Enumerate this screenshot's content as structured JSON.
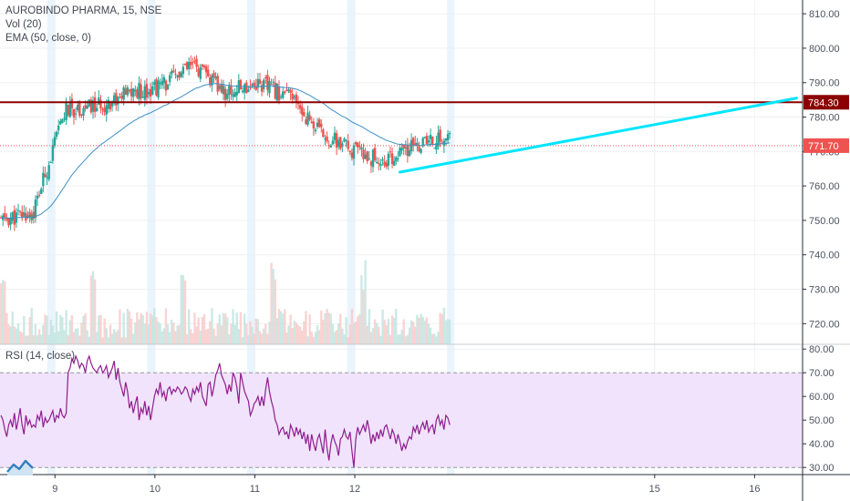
{
  "legend": {
    "symbol": "AUROBINDO PHARMA, 15, NSE",
    "volume": "Vol (20)",
    "ema": "EMA (50, close, 0)",
    "rsi": "RSI (14, close)"
  },
  "colors": {
    "up": "#26a69a",
    "down": "#ef5350",
    "ema": "#3d8fc6",
    "rsi": "#8e1d8e",
    "resistance": "#8b0000",
    "trendline": "#00e5ff",
    "last_price": "#ef5350",
    "rsi_band": "#f1e3fb"
  },
  "chart_data": [
    {
      "type": "candlestick",
      "title": "AUROBINDO PHARMA, 15, NSE",
      "ylim": [
        714,
        814
      ],
      "y_ticks": [
        "720.00",
        "730.00",
        "740.00",
        "750.00",
        "760.00",
        "770.00",
        "780.00",
        "790.00",
        "800.00",
        "810.00"
      ],
      "x_ticks": [
        "9",
        "10",
        "11",
        "12",
        "15",
        "16"
      ],
      "x_range": [
        8.45,
        16.48
      ],
      "session_marks": [
        8.96,
        9.96,
        10.96,
        11.96,
        12.96
      ],
      "resistance_level": 784.3,
      "resistance_label": "784.30",
      "last_price": 771.7,
      "last_price_label": "771.70",
      "trendline": {
        "x": [
          12.45,
          16.42
        ],
        "y": [
          764,
          785.5
        ]
      },
      "session_means": [
        750,
        752,
        782,
        783,
        787,
        789,
        795,
        787,
        790,
        786,
        775,
        770,
        767,
        772,
        774
      ],
      "volume_max": 40,
      "ema_period": 50
    },
    {
      "type": "line",
      "title": "RSI (14, close)",
      "ylim": [
        27,
        82
      ],
      "y_ticks": [
        "30.00",
        "40.00",
        "50.00",
        "60.00",
        "70.00",
        "80.00"
      ],
      "bands": [
        30,
        70
      ],
      "values": [
        52,
        50,
        46,
        43,
        48,
        50,
        47,
        53,
        46,
        50,
        55,
        48,
        44,
        52,
        48,
        50,
        47,
        48,
        47,
        52,
        50,
        54,
        47,
        51,
        49,
        50,
        52,
        54,
        49,
        52,
        51,
        55,
        52,
        51,
        53,
        70,
        72,
        76,
        74,
        77,
        75,
        72,
        74,
        73,
        70,
        75,
        77,
        74,
        72,
        71,
        70,
        72,
        73,
        70,
        71,
        73,
        68,
        70,
        72,
        75,
        67,
        72,
        66,
        63,
        60,
        66,
        62,
        55,
        58,
        53,
        57,
        60,
        50,
        55,
        53,
        58,
        52,
        56,
        50,
        55,
        60,
        63,
        61,
        66,
        60,
        62,
        58,
        63,
        64,
        61,
        63,
        62,
        64,
        63,
        61,
        62,
        64,
        63,
        60,
        58,
        63,
        61,
        64,
        62,
        66,
        60,
        58,
        56,
        65,
        66,
        60,
        64,
        69,
        71,
        74,
        69,
        67,
        65,
        61,
        65,
        62,
        70,
        68,
        64,
        57,
        70,
        66,
        62,
        60,
        58,
        52,
        54,
        57,
        58,
        60,
        56,
        60,
        56,
        63,
        68,
        62,
        58,
        55,
        50,
        48,
        44,
        46,
        47,
        44,
        45,
        42,
        48,
        46,
        43,
        47,
        44,
        46,
        42,
        45,
        40,
        44,
        37,
        44,
        40,
        37,
        42,
        44,
        40,
        36,
        46,
        38,
        33,
        40,
        44,
        41,
        39,
        35,
        42,
        43,
        46,
        43,
        42,
        45,
        37,
        30,
        42,
        47,
        44,
        46,
        48,
        45,
        50,
        46,
        40,
        44,
        41,
        45,
        42,
        46,
        43,
        47,
        48,
        45,
        42,
        46,
        44,
        40,
        44,
        41,
        37,
        40,
        38,
        41,
        43,
        42,
        47,
        45,
        48,
        44,
        47,
        49,
        46,
        50,
        45,
        47,
        48,
        44,
        50,
        52,
        48,
        50,
        46,
        52,
        51,
        48
      ]
    }
  ]
}
